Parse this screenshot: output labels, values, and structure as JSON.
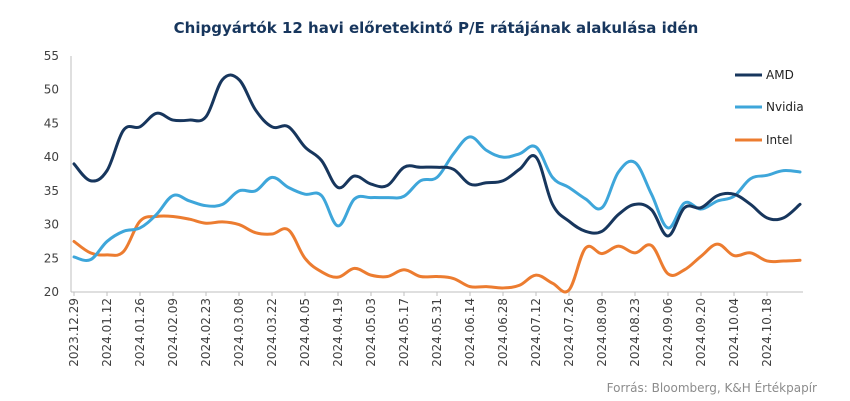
{
  "chart_data": {
    "type": "line",
    "title": "Chipgyártók 12 havi előretekintő P/E rátájának alakulása idén",
    "source": "Forrás: Bloomberg, K&H Értékpapír",
    "xlabel": "",
    "ylabel": "",
    "ylim": [
      20,
      55
    ],
    "yticks": [
      20,
      25,
      30,
      35,
      40,
      45,
      50,
      55
    ],
    "grid": false,
    "legend_position": "right",
    "x_tick_labels": [
      "2023.12.29",
      "2024.01.12",
      "2024.01.26",
      "2024.02.09",
      "2024.02.23",
      "2024.03.08",
      "2024.03.22",
      "2024.04.05",
      "2024.04.19",
      "2024.05.03",
      "2024.05.17",
      "2024.05.31",
      "2024.06.14",
      "2024.06.28",
      "2024.07.12",
      "2024.07.26",
      "2024.08.09",
      "2024.08.23",
      "2024.09.06",
      "2024.09.20",
      "2024.10.04",
      "2024.10.18"
    ],
    "x": [
      "2023.12.29",
      "2024.01.05",
      "2024.01.12",
      "2024.01.19",
      "2024.01.26",
      "2024.02.02",
      "2024.02.09",
      "2024.02.16",
      "2024.02.23",
      "2024.03.01",
      "2024.03.08",
      "2024.03.15",
      "2024.03.22",
      "2024.03.29",
      "2024.04.05",
      "2024.04.12",
      "2024.04.19",
      "2024.04.26",
      "2024.05.03",
      "2024.05.10",
      "2024.05.17",
      "2024.05.24",
      "2024.05.31",
      "2024.06.07",
      "2024.06.14",
      "2024.06.21",
      "2024.06.28",
      "2024.07.05",
      "2024.07.12",
      "2024.07.19",
      "2024.07.26",
      "2024.08.02",
      "2024.08.09",
      "2024.08.16",
      "2024.08.23",
      "2024.08.30",
      "2024.09.06",
      "2024.09.13",
      "2024.09.20",
      "2024.09.27",
      "2024.10.04",
      "2024.10.11",
      "2024.10.18",
      "2024.10.25",
      "2024.11.01"
    ],
    "series": [
      {
        "name": "AMD",
        "color": "#17365d",
        "values": [
          39,
          36.5,
          38,
          44,
          44.5,
          46.5,
          45.5,
          45.5,
          46,
          51.5,
          51.5,
          47,
          44.5,
          44.5,
          41.5,
          39.5,
          35.5,
          37.2,
          36,
          35.8,
          38.5,
          38.5,
          38.5,
          38.2,
          36,
          36.2,
          36.5,
          38.2,
          40,
          33,
          30.5,
          29,
          29,
          31.5,
          33,
          32.2,
          28.3,
          32.5,
          32.5,
          34.3,
          34.5,
          33,
          31,
          31,
          33
        ]
      },
      {
        "name": "Nvidia",
        "color": "#3ea6da",
        "values": [
          25.2,
          24.8,
          27.5,
          29,
          29.5,
          31.5,
          34.3,
          33.5,
          32.8,
          33,
          35,
          35,
          37,
          35.5,
          34.5,
          34.3,
          29.8,
          33.8,
          34,
          34,
          34.2,
          36.5,
          37,
          40.5,
          43,
          41,
          40,
          40.5,
          41.5,
          37,
          35.5,
          33.8,
          32.5,
          37.8,
          39.2,
          34.5,
          29.5,
          33.2,
          32.3,
          33.5,
          34.2,
          36.8,
          37.3,
          38,
          37.8
        ]
      },
      {
        "name": "Intel",
        "color": "#ec7c30",
        "values": [
          27.5,
          25.8,
          25.5,
          26,
          30.5,
          31.2,
          31.2,
          30.8,
          30.2,
          30.4,
          30,
          28.8,
          28.6,
          29.2,
          25,
          23,
          22.2,
          23.5,
          22.5,
          22.3,
          23.3,
          22.3,
          22.3,
          22,
          20.8,
          20.8,
          20.6,
          21,
          22.5,
          21.3,
          20.3,
          26.5,
          25.7,
          26.8,
          25.8,
          26.9,
          22.7,
          23.3,
          25.3,
          27.1,
          25.4,
          25.8,
          24.6,
          24.6,
          24.7
        ]
      }
    ]
  }
}
